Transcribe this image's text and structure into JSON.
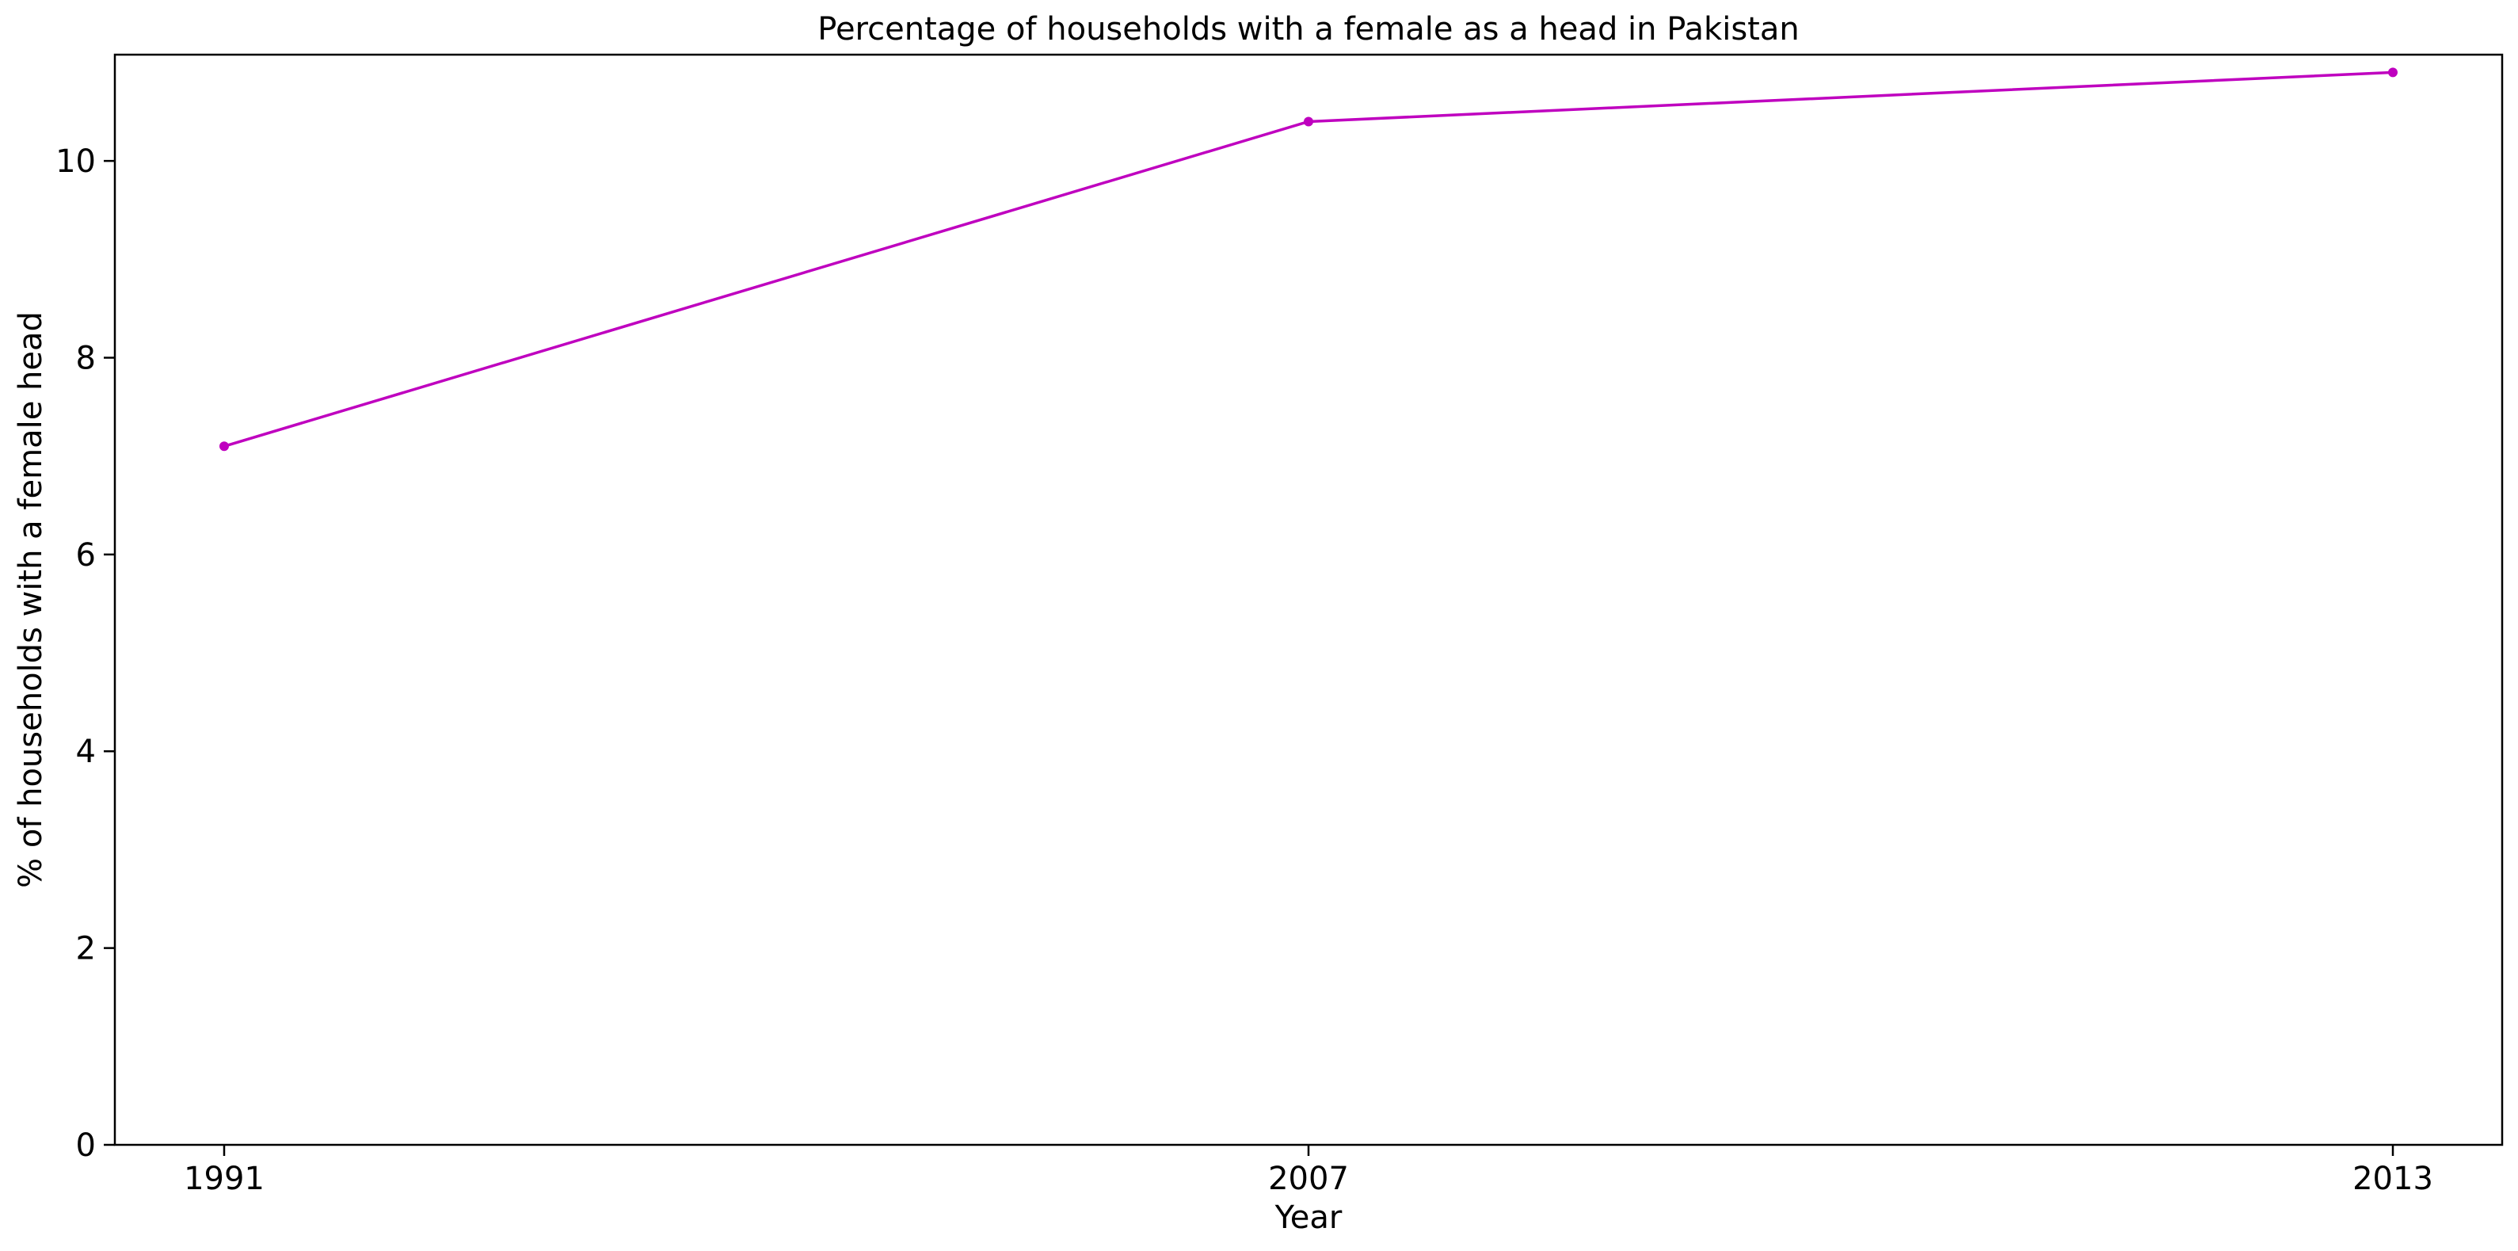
{
  "chart_data": {
    "type": "line",
    "title": "Percentage of households with a female as a head in Pakistan",
    "xlabel": "Year",
    "ylabel": "% of households with a female head",
    "categories": [
      "1991",
      "2007",
      "2013"
    ],
    "series": [
      {
        "values": [
          7.1,
          10.4,
          10.9
        ],
        "color": "#bf00bf",
        "marker": "dot"
      }
    ],
    "y_ticks": [
      0,
      2,
      4,
      6,
      8,
      10
    ],
    "ylim": [
      0,
      11.08
    ],
    "grid": false,
    "legend": "none"
  }
}
